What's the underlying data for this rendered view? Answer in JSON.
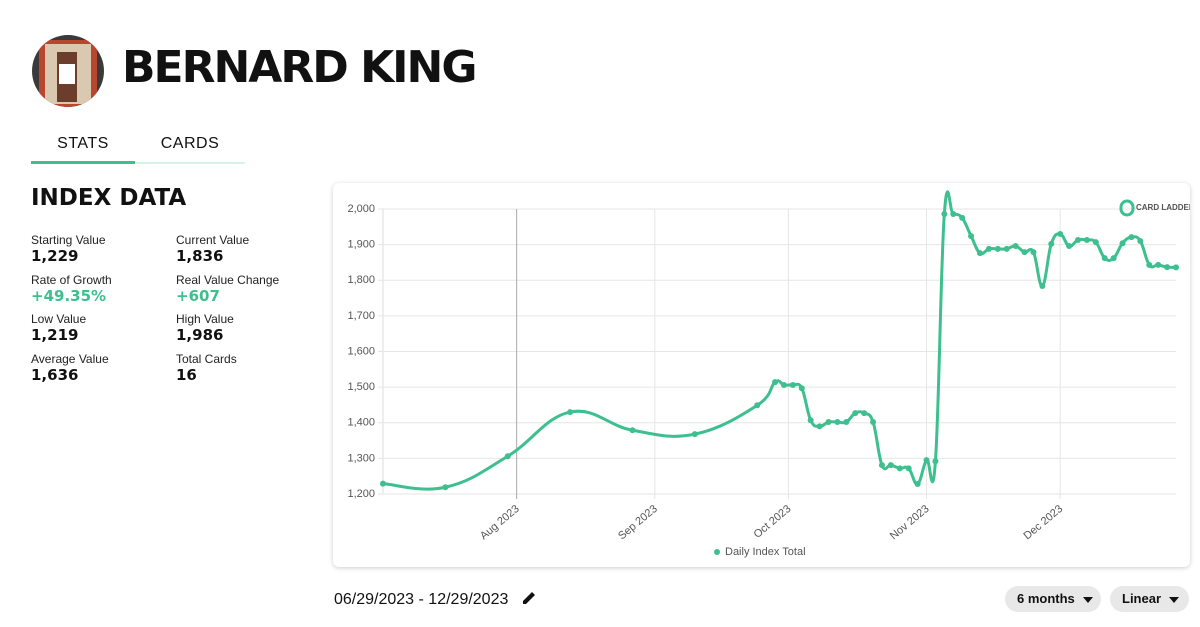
{
  "header": {
    "name": "BERNARD KING"
  },
  "tabs": [
    "STATS",
    "CARDS"
  ],
  "index_data": {
    "title": "INDEX DATA",
    "stats": [
      {
        "label": "Starting Value",
        "value": "1,229"
      },
      {
        "label": "Current Value",
        "value": "1,836"
      },
      {
        "label": "Rate of Growth",
        "value": "+49.35%"
      },
      {
        "label": "Real Value Change",
        "value": "+607"
      },
      {
        "label": "Low Value",
        "value": "1,219"
      },
      {
        "label": "High Value",
        "value": "1,986"
      },
      {
        "label": "Average Value",
        "value": "1,636"
      },
      {
        "label": "Total Cards",
        "value": "16"
      }
    ]
  },
  "logo": "CARD LADDER",
  "chart_data": {
    "type": "line",
    "series": [
      {
        "name": "Daily Index Total",
        "color": "#3dbf8f",
        "x": [
          0,
          14,
          28,
          42,
          56,
          70,
          84,
          88,
          90,
          92,
          94,
          96,
          98,
          100,
          102,
          104,
          106,
          108,
          110,
          112,
          114,
          116,
          118,
          120,
          122,
          124,
          126,
          128,
          130,
          132,
          134,
          136,
          138,
          140,
          142,
          144,
          146,
          148,
          150,
          152,
          154,
          156,
          158,
          160,
          162,
          164,
          166,
          168,
          170,
          172,
          174,
          176,
          178
        ],
        "values": [
          1229,
          1219,
          1306,
          1430,
          1379,
          1368,
          1449,
          1514,
          1506,
          1506,
          1497,
          1407,
          1390,
          1402,
          1402,
          1402,
          1427,
          1427,
          1402,
          1281,
          1281,
          1272,
          1272,
          1228,
          1295,
          1292,
          1986,
          1986,
          1975,
          1924,
          1876,
          1888,
          1888,
          1888,
          1896,
          1879,
          1879,
          1784,
          1902,
          1930,
          1896,
          1913,
          1913,
          1907,
          1862,
          1862,
          1904,
          1921,
          1910,
          1843,
          1843,
          1837,
          1836
        ]
      }
    ],
    "xlim": [
      0,
      178
    ],
    "xticks": [
      {
        "value": 30,
        "label": "Aug 2023"
      },
      {
        "value": 61,
        "label": "Sep 2023"
      },
      {
        "value": 91,
        "label": "Oct 2023"
      },
      {
        "value": 122,
        "label": "Nov 2023"
      },
      {
        "value": 152,
        "label": "Dec 2023"
      }
    ],
    "ylim": [
      1200,
      2000
    ],
    "yticks": [
      {
        "value": 1200,
        "label": "1,200"
      },
      {
        "value": 1300,
        "label": "1,300"
      },
      {
        "value": 1400,
        "label": "1,400"
      },
      {
        "value": 1500,
        "label": "1,500"
      },
      {
        "value": 1600,
        "label": "1,600"
      },
      {
        "value": 1700,
        "label": "1,700"
      },
      {
        "value": 1800,
        "label": "1,800"
      },
      {
        "value": 1900,
        "label": "1,900"
      },
      {
        "value": 2000,
        "label": "2,000"
      }
    ],
    "grid": true,
    "legend": "bottom"
  },
  "date_range": "06/29/2023 - 12/29/2023",
  "controls": [
    "6 months",
    "Linear"
  ]
}
